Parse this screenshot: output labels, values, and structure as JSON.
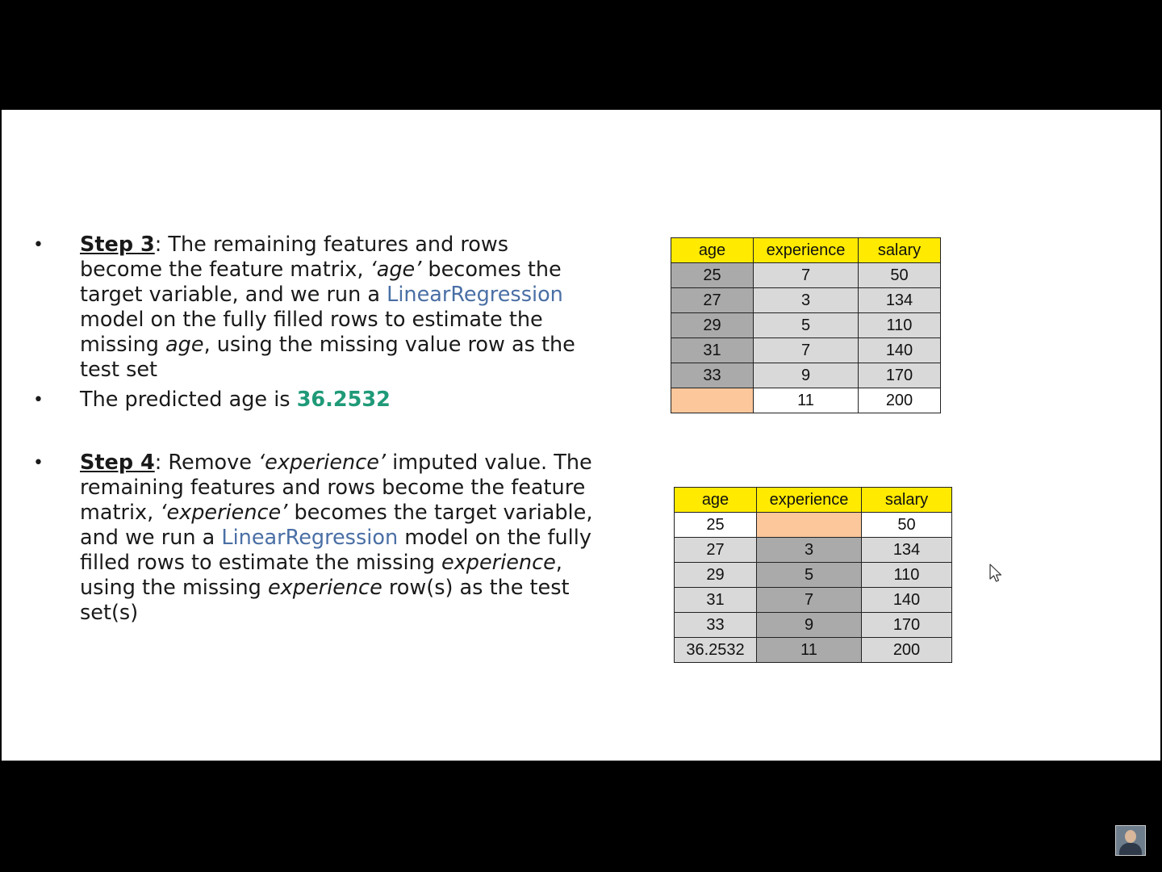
{
  "slide": {
    "step3": {
      "label": "Step 3",
      "text_1": ": The remaining features and rows become the feature matrix, ",
      "target_name": "‘age’",
      "text_2": " becomes the target variable, and we run a ",
      "model_name": "LinearRegression",
      "text_3": " model on the fully filled rows to estimate the missing ",
      "missing_name": "age",
      "text_4": ", using the missing value row as the test set"
    },
    "prediction": {
      "text": "The predicted age is ",
      "value": "36.2532"
    },
    "step4": {
      "label": "Step 4",
      "text_1": ": Remove ",
      "removed_name": "‘experience’",
      "text_2": " imputed value. The remaining features and rows become the feature matrix, ",
      "target_name": "‘experience’",
      "text_3": " becomes the target variable, and we run a ",
      "model_name": "LinearRegression",
      "text_4": " model on the fully filled rows to estimate the missing ",
      "missing_name": "experience",
      "text_5": ", using the missing ",
      "missing_name_2": "experience",
      "text_6": " row(s) as the test set(s)"
    }
  },
  "table_step3": {
    "headers": [
      "age",
      "experience",
      "salary"
    ],
    "rows": [
      [
        "25",
        "7",
        "50"
      ],
      [
        "27",
        "3",
        "134"
      ],
      [
        "29",
        "5",
        "110"
      ],
      [
        "31",
        "7",
        "140"
      ],
      [
        "33",
        "9",
        "170"
      ],
      [
        "",
        "11",
        "200"
      ]
    ]
  },
  "table_step4": {
    "headers": [
      "age",
      "experience",
      "salary"
    ],
    "rows": [
      [
        "25",
        "",
        "50"
      ],
      [
        "27",
        "3",
        "134"
      ],
      [
        "29",
        "5",
        "110"
      ],
      [
        "31",
        "7",
        "140"
      ],
      [
        "33",
        "9",
        "170"
      ],
      [
        "36.2532",
        "11",
        "200"
      ]
    ]
  },
  "colors": {
    "header_fill": "#ffea00",
    "feature_gray": "#d9d9d9",
    "target_gray": "#aaaaaa",
    "missing_fill": "#fbc79b",
    "prediction_text": "#1f9a78",
    "code_text": "#4a6fa5"
  },
  "icons": {
    "cursor": "mouse-pointer-icon",
    "presenter": "presenter-webcam-thumbnail"
  }
}
